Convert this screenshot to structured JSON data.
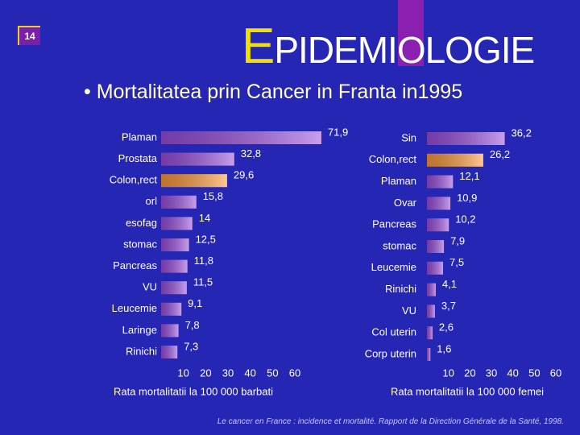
{
  "slide_number": "14",
  "title": "EPIDEMIOLOGIE",
  "bullet": "• Mortalitatea prin Cancer in Franta in1995",
  "source": "Le cancer en France : incidence et mortalité. Rapport de la Direction Générale de la Santé, 1998.",
  "chart_data": [
    {
      "type": "bar",
      "orientation": "horizontal",
      "xlabel": "Rata mortalitatii la 100 000 barbati",
      "categories": [
        "Plaman",
        "Prostata",
        "Colon,rect",
        "orl",
        "esofag",
        "stomac",
        "Pancreas",
        "VU",
        "Leucemie",
        "Laringe",
        "Rinichi"
      ],
      "values": [
        71.9,
        32.8,
        29.6,
        15.8,
        14,
        12.5,
        11.8,
        11.5,
        9.1,
        7.8,
        7.3
      ],
      "value_labels": [
        "71,9",
        "32,8",
        "29,6",
        "15,8",
        "14",
        "12,5",
        "11,8",
        "11,5",
        "9,1",
        "7,8",
        "7,3"
      ],
      "colors": [
        "#9a4fe0",
        "#9a4fe0",
        "#ff9a3a",
        "#9a4fe0",
        "#9a4fe0",
        "#9a4fe0",
        "#9a4fe0",
        "#9a4fe0",
        "#9a4fe0",
        "#9a4fe0",
        "#9a4fe0"
      ],
      "xlim": [
        0,
        60
      ],
      "xticks": [
        10,
        20,
        30,
        40,
        50,
        60
      ]
    },
    {
      "type": "bar",
      "orientation": "horizontal",
      "xlabel": "Rata mortalitatii la 100 000 femei",
      "categories": [
        "Sin",
        "Colon,rect",
        "Plaman",
        "Ovar",
        "Pancreas",
        "stomac",
        "Leucemie",
        "Rinichi",
        "VU",
        "Col uterin",
        "Corp uterin"
      ],
      "values": [
        36.2,
        26.2,
        12.1,
        10.9,
        10.2,
        7.9,
        7.5,
        4.1,
        3.7,
        2.6,
        1.6
      ],
      "value_labels": [
        "36,2",
        "26,2",
        "12,1",
        "10,9",
        "10,2",
        "7,9",
        "7,5",
        "4,1",
        "3,7",
        "2,6",
        "1,6"
      ],
      "colors": [
        "#9a4fe0",
        "#ff9a3a",
        "#9a4fe0",
        "#9a4fe0",
        "#9a4fe0",
        "#9a4fe0",
        "#9a4fe0",
        "#9a4fe0",
        "#9a4fe0",
        "#9a4fe0",
        "#9a4fe0"
      ],
      "xlim": [
        0,
        60
      ],
      "xticks": [
        10,
        20,
        30,
        40,
        50,
        60
      ]
    }
  ]
}
